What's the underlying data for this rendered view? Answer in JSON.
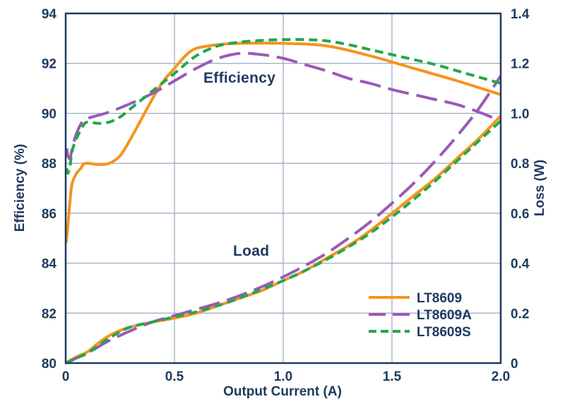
{
  "chart_data": {
    "type": "line",
    "xlabel": "Output Current (A)",
    "ylabel_left": "Efficiency (%)",
    "ylabel_right": "Loss (W)",
    "xlim": [
      0,
      2.0
    ],
    "ylim_left": [
      80,
      94
    ],
    "ylim_right": [
      0,
      1.4
    ],
    "x_ticks": [
      "0",
      "0.5",
      "1.0",
      "1.5",
      "2.0"
    ],
    "y_ticks_left": [
      "80",
      "82",
      "84",
      "86",
      "88",
      "90",
      "92",
      "94"
    ],
    "y_ticks_right": [
      "0",
      "0.2",
      "0.4",
      "0.6",
      "0.8",
      "1.0",
      "1.2",
      "1.4"
    ],
    "grid": true,
    "legend_position": "bottom-right",
    "annotations": {
      "efficiency": "Efficiency",
      "load": "Load"
    },
    "colors": {
      "axis": "#1f3a60",
      "grid": "#9aa7bd"
    },
    "series": [
      {
        "name": "LT8609",
        "color": "#f7931e",
        "dash": "solid",
        "efficiency": [
          [
            0.002,
            84.8
          ],
          [
            0.01,
            85.5
          ],
          [
            0.02,
            86.5
          ],
          [
            0.03,
            87.2
          ],
          [
            0.05,
            87.6
          ],
          [
            0.07,
            87.8
          ],
          [
            0.08,
            87.95
          ],
          [
            0.1,
            88.0
          ],
          [
            0.15,
            87.95
          ],
          [
            0.2,
            88.0
          ],
          [
            0.25,
            88.3
          ],
          [
            0.3,
            89.0
          ],
          [
            0.35,
            89.8
          ],
          [
            0.4,
            90.6
          ],
          [
            0.45,
            91.3
          ],
          [
            0.5,
            91.8
          ],
          [
            0.55,
            92.3
          ],
          [
            0.6,
            92.6
          ],
          [
            0.7,
            92.75
          ],
          [
            0.8,
            92.8
          ],
          [
            1.0,
            92.8
          ],
          [
            1.2,
            92.7
          ],
          [
            1.4,
            92.3
          ],
          [
            1.6,
            91.8
          ],
          [
            1.8,
            91.3
          ],
          [
            2.0,
            90.75
          ]
        ],
        "loss": [
          [
            0.0,
            0.0
          ],
          [
            0.05,
            0.025
          ],
          [
            0.1,
            0.045
          ],
          [
            0.15,
            0.08
          ],
          [
            0.2,
            0.11
          ],
          [
            0.25,
            0.13
          ],
          [
            0.3,
            0.145
          ],
          [
            0.4,
            0.165
          ],
          [
            0.5,
            0.18
          ],
          [
            0.6,
            0.2
          ],
          [
            0.7,
            0.23
          ],
          [
            0.8,
            0.26
          ],
          [
            0.9,
            0.29
          ],
          [
            1.0,
            0.33
          ],
          [
            1.1,
            0.37
          ],
          [
            1.2,
            0.42
          ],
          [
            1.3,
            0.47
          ],
          [
            1.4,
            0.53
          ],
          [
            1.5,
            0.6
          ],
          [
            1.6,
            0.67
          ],
          [
            1.7,
            0.74
          ],
          [
            1.8,
            0.82
          ],
          [
            1.9,
            0.9
          ],
          [
            2.0,
            0.99
          ]
        ]
      },
      {
        "name": "LT8609A",
        "color": "#9b59b6",
        "dash": "long-dash",
        "efficiency": [
          [
            0.005,
            88.6
          ],
          [
            0.01,
            88.3
          ],
          [
            0.02,
            88.2
          ],
          [
            0.03,
            88.6
          ],
          [
            0.05,
            89.2
          ],
          [
            0.08,
            89.7
          ],
          [
            0.12,
            89.85
          ],
          [
            0.2,
            90.05
          ],
          [
            0.3,
            90.4
          ],
          [
            0.4,
            90.8
          ],
          [
            0.5,
            91.3
          ],
          [
            0.6,
            91.8
          ],
          [
            0.7,
            92.2
          ],
          [
            0.8,
            92.4
          ],
          [
            0.9,
            92.35
          ],
          [
            1.0,
            92.2
          ],
          [
            1.1,
            91.95
          ],
          [
            1.2,
            91.7
          ],
          [
            1.3,
            91.4
          ],
          [
            1.4,
            91.2
          ],
          [
            1.5,
            90.95
          ],
          [
            1.6,
            90.75
          ],
          [
            1.7,
            90.55
          ],
          [
            1.8,
            90.35
          ],
          [
            1.9,
            90.05
          ],
          [
            2.0,
            89.7
          ]
        ],
        "loss": [
          [
            0.0,
            0.0
          ],
          [
            0.05,
            0.02
          ],
          [
            0.1,
            0.04
          ],
          [
            0.15,
            0.065
          ],
          [
            0.2,
            0.09
          ],
          [
            0.3,
            0.13
          ],
          [
            0.4,
            0.165
          ],
          [
            0.5,
            0.19
          ],
          [
            0.6,
            0.215
          ],
          [
            0.7,
            0.24
          ],
          [
            0.8,
            0.27
          ],
          [
            0.9,
            0.305
          ],
          [
            1.0,
            0.345
          ],
          [
            1.1,
            0.39
          ],
          [
            1.2,
            0.44
          ],
          [
            1.3,
            0.5
          ],
          [
            1.4,
            0.565
          ],
          [
            1.5,
            0.64
          ],
          [
            1.6,
            0.72
          ],
          [
            1.7,
            0.81
          ],
          [
            1.8,
            0.91
          ],
          [
            1.9,
            1.02
          ],
          [
            2.0,
            1.15
          ]
        ]
      },
      {
        "name": "LT8609S",
        "color": "#22a84a",
        "dash": "short-dash",
        "efficiency": [
          [
            0.005,
            87.8
          ],
          [
            0.01,
            87.6
          ],
          [
            0.02,
            87.9
          ],
          [
            0.03,
            88.5
          ],
          [
            0.05,
            89.0
          ],
          [
            0.08,
            89.5
          ],
          [
            0.1,
            89.65
          ],
          [
            0.15,
            89.6
          ],
          [
            0.2,
            89.65
          ],
          [
            0.25,
            89.85
          ],
          [
            0.3,
            90.2
          ],
          [
            0.4,
            90.9
          ],
          [
            0.5,
            91.6
          ],
          [
            0.6,
            92.3
          ],
          [
            0.7,
            92.7
          ],
          [
            0.8,
            92.85
          ],
          [
            0.9,
            92.92
          ],
          [
            1.0,
            92.95
          ],
          [
            1.1,
            92.95
          ],
          [
            1.2,
            92.9
          ],
          [
            1.3,
            92.75
          ],
          [
            1.4,
            92.55
          ],
          [
            1.5,
            92.35
          ],
          [
            1.6,
            92.15
          ],
          [
            1.7,
            91.95
          ],
          [
            1.8,
            91.7
          ],
          [
            1.9,
            91.45
          ],
          [
            2.0,
            91.2
          ]
        ],
        "loss": [
          [
            0.0,
            0.0
          ],
          [
            0.05,
            0.02
          ],
          [
            0.1,
            0.04
          ],
          [
            0.15,
            0.07
          ],
          [
            0.2,
            0.1
          ],
          [
            0.25,
            0.125
          ],
          [
            0.3,
            0.145
          ],
          [
            0.4,
            0.165
          ],
          [
            0.5,
            0.185
          ],
          [
            0.6,
            0.205
          ],
          [
            0.7,
            0.23
          ],
          [
            0.8,
            0.26
          ],
          [
            0.9,
            0.295
          ],
          [
            1.0,
            0.33
          ],
          [
            1.1,
            0.37
          ],
          [
            1.2,
            0.415
          ],
          [
            1.3,
            0.465
          ],
          [
            1.4,
            0.52
          ],
          [
            1.5,
            0.585
          ],
          [
            1.6,
            0.655
          ],
          [
            1.7,
            0.73
          ],
          [
            1.8,
            0.81
          ],
          [
            1.9,
            0.89
          ],
          [
            2.0,
            0.97
          ]
        ]
      }
    ]
  }
}
